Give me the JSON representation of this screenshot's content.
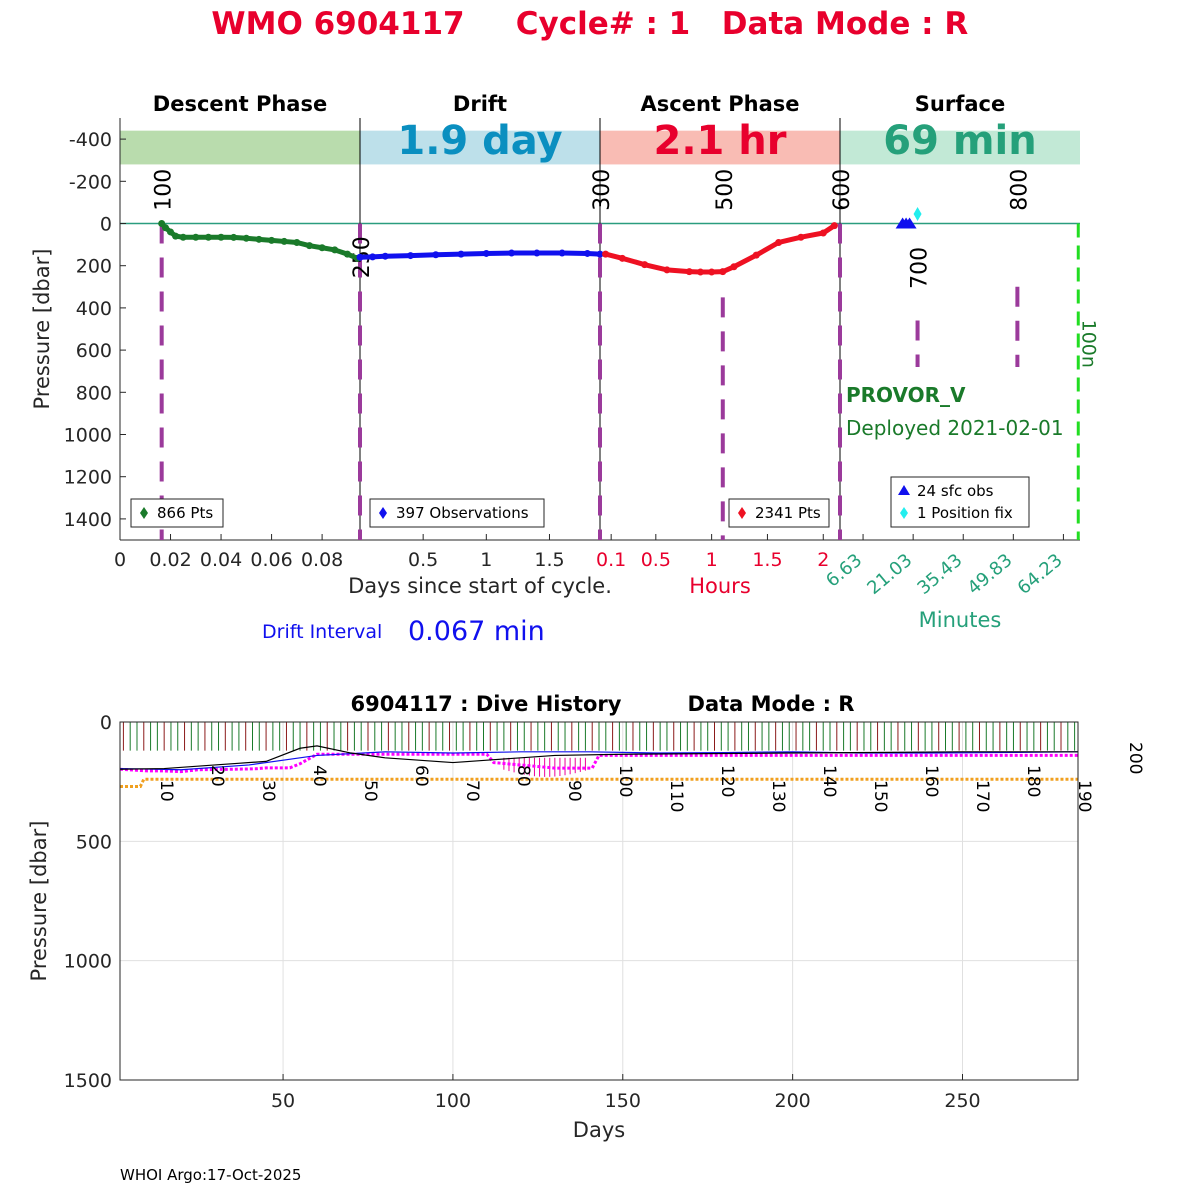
{
  "title": {
    "wmo": "WMO 6904117",
    "cycle": "Cycle# : 1",
    "mode": "Data Mode : R",
    "color": "#e8002d"
  },
  "chart_data": [
    {
      "type": "scatter",
      "panel": "cycle",
      "ylabel": "Pressure [dbar]",
      "ylim": [
        -500,
        1500
      ],
      "yticks": [
        "-400",
        "-200",
        "0",
        "200",
        "400",
        "600",
        "800",
        "1000",
        "1200",
        "1400"
      ],
      "grid": false,
      "phases": [
        {
          "name": "Descent Phase",
          "color": "#b9dcad"
        },
        {
          "name": "Drift",
          "color": "#bde0ea",
          "duration": "1.9 day",
          "duration_color": "#0a8fc0"
        },
        {
          "name": "Ascent Phase",
          "color": "#f9bcb4",
          "duration": "2.1 hr",
          "duration_color": "#e8002d"
        },
        {
          "name": "Surface",
          "color": "#c2e9d6",
          "duration": "69 min",
          "duration_color": "#25a07a"
        }
      ],
      "phase_xticks": [
        {
          "labels": [
            "0",
            "0.02",
            "0.04",
            "0.06",
            "0.08"
          ],
          "range": [
            0,
            0.095
          ],
          "positions": [
            0,
            0.02,
            0.04,
            0.06,
            0.08
          ],
          "color": "#262626"
        },
        {
          "labels": [
            "0.5",
            "1",
            "1.5"
          ],
          "range": [
            0,
            1.9
          ],
          "positions": [
            0.5,
            1,
            1.5
          ],
          "color": "#262626"
        },
        {
          "labels": [
            "0.1",
            "0.5",
            "1",
            "1.5",
            "2"
          ],
          "range": [
            0,
            2.15
          ],
          "positions": [
            0.1,
            0.5,
            1,
            1.5,
            2
          ],
          "color": "#e8002d"
        },
        {
          "labels": [
            "6.63",
            "21.03",
            "35.43",
            "49.83",
            "64.23"
          ],
          "range": [
            0,
            69
          ],
          "positions": [
            6.63,
            21.03,
            35.43,
            49.83,
            64.23
          ],
          "color": "#25a07a"
        }
      ],
      "xlabel": "Days since start of cycle.",
      "xlabel_hours": "Hours",
      "xlabel_minutes": "Minutes",
      "series": [
        {
          "name": "866 Pts",
          "color": "#1a7a2a",
          "phase": 0,
          "x": [
            0.0165,
            0.018,
            0.02,
            0.022,
            0.025,
            0.03,
            0.035,
            0.04,
            0.045,
            0.05,
            0.055,
            0.06,
            0.065,
            0.07,
            0.075,
            0.08,
            0.085,
            0.09,
            0.094
          ],
          "y": [
            0,
            20,
            40,
            60,
            65,
            65,
            65,
            65,
            66,
            70,
            75,
            80,
            85,
            90,
            105,
            115,
            125,
            145,
            165
          ]
        },
        {
          "name": "397 Observations",
          "color": "#1010ee",
          "phase": 1,
          "x": [
            0,
            0.1,
            0.2,
            0.4,
            0.6,
            0.8,
            1.0,
            1.2,
            1.4,
            1.6,
            1.8,
            1.9
          ],
          "y": [
            160,
            158,
            155,
            152,
            148,
            145,
            142,
            140,
            140,
            140,
            142,
            145
          ]
        },
        {
          "name": "2341 Pts",
          "color": "#ee1122",
          "phase": 2,
          "x": [
            0.05,
            0.2,
            0.4,
            0.6,
            0.8,
            0.9,
            1.0,
            1.1,
            1.2,
            1.4,
            1.6,
            1.8,
            2.0,
            2.1
          ],
          "y": [
            145,
            165,
            195,
            220,
            228,
            230,
            230,
            228,
            205,
            150,
            90,
            65,
            45,
            10
          ]
        },
        {
          "name": "24 sfc obs",
          "color": "#1010ee",
          "marker": "triangle",
          "phase": 3,
          "x": [
            18,
            19,
            20
          ],
          "y": [
            0,
            0,
            0
          ]
        },
        {
          "name": "1 Position fix",
          "color": "#22eeee",
          "marker": "diamond",
          "phase": 3,
          "x": [
            22.3
          ],
          "y": [
            -45
          ]
        }
      ],
      "cycle_markers": [
        {
          "label": "100",
          "phase": 0,
          "x": 0.0165,
          "label_y": -160,
          "y0": 0,
          "y1": 1500
        },
        {
          "label": "250",
          "phase": 1,
          "x": 0,
          "label_y": 160,
          "y0": 0,
          "y1": 1500
        },
        {
          "label": "300",
          "phase": 2,
          "x": 0,
          "label_y": -160,
          "y0": 0,
          "y1": 1500
        },
        {
          "label": "500",
          "phase": 2,
          "x": 1.1,
          "label_y": -160,
          "y0": 350,
          "y1": 1500
        },
        {
          "label": "600",
          "phase": 3,
          "x": 0,
          "label_y": -160,
          "y0": 0,
          "y1": 1500
        },
        {
          "label": "700",
          "phase": 3,
          "x": 22.3,
          "label_y": 210,
          "y0": 460,
          "y1": 680
        },
        {
          "label": "800",
          "phase": 3,
          "x": 51,
          "label_y": -160,
          "y0": 300,
          "y1": 680
        }
      ],
      "limit_line": {
        "label": "100n",
        "color": "#22dd22",
        "phase": 3,
        "x": 68.5
      },
      "legends": [
        "866 Pts",
        "397 Observations",
        "2341 Pts",
        "24 sfc obs",
        "1 Position fix"
      ],
      "float_type": "PROVOR_V",
      "deployed": "Deployed 2021-02-01",
      "float_color": "#1a7a2a",
      "drift_interval_label": "Drift Interval",
      "drift_interval_value": "0.067 min",
      "drift_interval_color": "#1010ee"
    },
    {
      "type": "line",
      "panel": "history",
      "title": "6904117 : Dive History",
      "title_mode": "Data Mode : R",
      "xlabel": "Days",
      "ylabel": "Pressure [dbar]",
      "xlim": [
        2,
        284
      ],
      "ylim": [
        0,
        1500
      ],
      "xticks": [
        50,
        100,
        150,
        200,
        250
      ],
      "yticks": [
        0,
        500,
        1000,
        1500
      ],
      "grid": true,
      "cycle_labels": [
        "10",
        "20",
        "30",
        "40",
        "50",
        "60",
        "70",
        "80",
        "90",
        "100",
        "110",
        "120",
        "130",
        "140",
        "150",
        "160",
        "170",
        "180",
        "190",
        "200"
      ],
      "series": [
        {
          "color": "#ff00ff",
          "style": "dotted",
          "x": [
            2,
            10,
            15,
            20,
            25,
            35,
            42,
            45,
            48,
            52,
            55,
            60,
            80,
            100,
            108,
            110,
            112,
            130,
            140,
            141,
            143,
            160,
            180,
            200,
            230,
            260,
            284
          ],
          "y": [
            198,
            205,
            205,
            208,
            200,
            198,
            196,
            192,
            192,
            192,
            175,
            135,
            135,
            135,
            135,
            135,
            170,
            193,
            193,
            193,
            140,
            140,
            140,
            140,
            140,
            140,
            140
          ]
        },
        {
          "color": "#f0a020",
          "style": "dotted",
          "x": [
            2,
            8,
            9,
            50,
            100,
            150,
            200,
            250,
            284
          ],
          "y": [
            270,
            270,
            240,
            240,
            240,
            240,
            240,
            240,
            240
          ]
        },
        {
          "color": "#1010ee",
          "style": "solid",
          "x": [
            2,
            20,
            40,
            60,
            80,
            100,
            120,
            140,
            160,
            180,
            200,
            220,
            240,
            260,
            284
          ],
          "y": [
            195,
            200,
            180,
            140,
            125,
            130,
            125,
            125,
            130,
            128,
            125,
            130,
            130,
            128,
            125
          ]
        },
        {
          "color": "#000000",
          "style": "solid",
          "x": [
            2,
            15,
            30,
            45,
            55,
            60,
            70,
            80,
            90,
            100,
            110,
            120,
            130,
            150,
            200,
            250,
            284
          ],
          "y": [
            198,
            195,
            180,
            165,
            110,
            100,
            130,
            150,
            160,
            170,
            160,
            150,
            140,
            135,
            130,
            125,
            125
          ]
        }
      ],
      "bar_colors": [
        "#1a7a2a",
        "#8b1a1a",
        "#ee0099"
      ]
    }
  ],
  "footer": "WHOI Argo:17-Oct-2025"
}
